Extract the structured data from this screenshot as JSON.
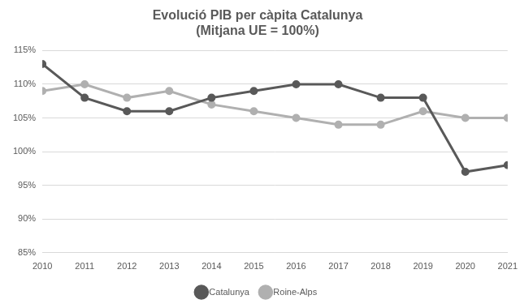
{
  "chart_data": {
    "type": "line",
    "title": [
      "Evolució PIB per càpita Catalunya",
      "(Mitjana UE = 100%)"
    ],
    "categories": [
      "2010",
      "2011",
      "2012",
      "2013",
      "2014",
      "2015",
      "2016",
      "2017",
      "2018",
      "2019",
      "2020",
      "2021"
    ],
    "series": [
      {
        "name": "Catalunya",
        "color": "#595959",
        "marker": "circle",
        "line_style": "solid",
        "values": [
          113,
          108,
          106,
          106,
          108,
          109,
          110,
          110,
          108,
          108,
          97,
          98
        ]
      },
      {
        "name": "Roine-Alps",
        "color": "#b0b0b0",
        "marker": "circle",
        "line_style": "solid",
        "values": [
          109,
          110,
          108,
          109,
          107,
          106,
          105,
          104,
          104,
          106,
          105,
          105
        ]
      }
    ],
    "ylim": [
      85,
      115
    ],
    "yticks": [
      {
        "value": 85,
        "label": "85%"
      },
      {
        "value": 90,
        "label": "90%"
      },
      {
        "value": 95,
        "label": "95%"
      },
      {
        "value": 100,
        "label": "100%"
      },
      {
        "value": 105,
        "label": "105%"
      },
      {
        "value": 110,
        "label": "110%"
      },
      {
        "value": 115,
        "label": "115%"
      }
    ],
    "grid": true,
    "legend": "bottom"
  }
}
